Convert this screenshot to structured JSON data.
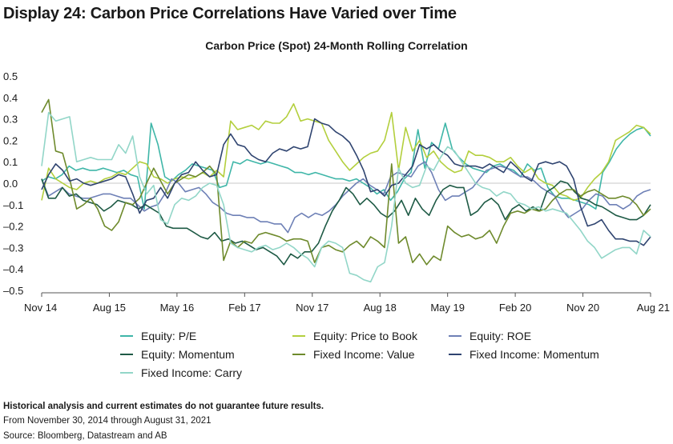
{
  "page_title": "Display 24: Carbon Price Correlations Have Varied over Time",
  "footnotes": {
    "disclaimer": "Historical analysis and current estimates do not guarantee future results.",
    "period": "From November 30, 2014 through August 31, 2021",
    "source": "Source: Bloomberg, Datastream and AB"
  },
  "chart_data": {
    "type": "line",
    "title": "Carbon Price (Spot) 24-Month Rolling Correlation",
    "xlabel": "",
    "ylabel": "",
    "ylim": [
      -0.5,
      0.5
    ],
    "yticks": [
      "0.5",
      "0.4",
      "0.3",
      "0.2",
      "0.1",
      "0.0",
      "–0.1",
      "–0.2",
      "–0.3",
      "–0.4",
      "–0.5"
    ],
    "xticks": [
      "Nov 14",
      "Aug 15",
      "May 16",
      "Feb 17",
      "Nov 17",
      "Aug 18",
      "May 19",
      "Feb 20",
      "Nov 20",
      "Aug 21"
    ],
    "grid": false,
    "legend_position": "bottom",
    "series": [
      {
        "name": "Equity: P/E",
        "color": "#3fb6a8",
        "values": [
          0.01,
          0.03,
          0.02,
          0.04,
          0.08,
          0.06,
          0.07,
          0.06,
          0.06,
          0.07,
          0.06,
          0.05,
          0.06,
          0.04,
          0.03,
          -0.12,
          0.28,
          0.18,
          0.03,
          0.01,
          0.04,
          0.06,
          0.09,
          0.08,
          0.07,
          0.06,
          -0.02,
          -0.01,
          0.1,
          0.09,
          0.11,
          0.1,
          0.09,
          0.1,
          0.09,
          0.08,
          0.07,
          0.05,
          0.05,
          0.04,
          0.05,
          0.04,
          0.03,
          0.02,
          0.02,
          0.01,
          0.02,
          0.0,
          -0.02,
          -0.05,
          -0.03,
          -0.08,
          -0.04,
          0.02,
          0.05,
          0.25,
          0.07,
          0.19,
          0.16,
          0.28,
          0.16,
          0.12,
          0.09,
          0.07,
          0.06,
          0.05,
          0.08,
          0.09,
          0.07,
          0.06,
          0.03,
          0.09,
          0.06,
          0.07,
          -0.02,
          -0.06,
          -0.07,
          -0.07,
          -0.08,
          -0.09,
          -0.1,
          -0.12,
          0.05,
          0.1,
          0.16,
          0.2,
          0.23,
          0.25,
          0.26,
          0.22
        ]
      },
      {
        "name": "Equity: Price to Book",
        "color": "#b3cf3d",
        "values": [
          -0.08,
          0.07,
          0.02,
          0.0,
          -0.02,
          -0.03,
          0.0,
          0.01,
          0.0,
          0.02,
          0.03,
          0.05,
          0.04,
          0.07,
          0.1,
          0.09,
          0.03,
          0.02,
          0.0,
          0.02,
          0.03,
          0.02,
          0.03,
          0.05,
          0.03,
          0.06,
          0.03,
          0.29,
          0.25,
          0.26,
          0.27,
          0.25,
          0.29,
          0.28,
          0.28,
          0.31,
          0.37,
          0.29,
          0.3,
          0.29,
          0.28,
          0.2,
          0.15,
          0.1,
          0.06,
          0.09,
          0.12,
          0.14,
          0.15,
          0.2,
          0.33,
          0.06,
          0.26,
          0.15,
          0.2,
          0.12,
          0.15,
          0.1,
          0.07,
          0.05,
          0.06,
          0.15,
          0.13,
          0.13,
          0.12,
          0.1,
          0.1,
          0.12,
          0.08,
          0.05,
          0.07,
          0.02,
          0.0,
          -0.01,
          -0.05,
          -0.06,
          -0.08,
          -0.07,
          -0.02,
          0.02,
          0.05,
          0.1,
          0.2,
          0.22,
          0.24,
          0.27,
          0.26,
          0.23
        ]
      },
      {
        "name": "Equity: ROE",
        "color": "#6e80b6",
        "values": [
          0.02,
          -0.06,
          -0.04,
          -0.02,
          -0.05,
          -0.06,
          -0.07,
          -0.07,
          -0.06,
          -0.05,
          -0.05,
          -0.06,
          -0.07,
          -0.07,
          -0.1,
          -0.13,
          -0.11,
          -0.1,
          -0.05,
          0.02,
          0.0,
          -0.04,
          -0.03,
          -0.02,
          -0.05,
          -0.09,
          -0.11,
          -0.14,
          -0.15,
          -0.15,
          -0.16,
          -0.16,
          -0.18,
          -0.18,
          -0.19,
          -0.19,
          -0.23,
          -0.16,
          -0.14,
          -0.16,
          -0.14,
          -0.15,
          -0.13,
          -0.1,
          -0.06,
          -0.03,
          0.0,
          0.02,
          -0.01,
          -0.03,
          -0.05,
          0.03,
          0.05,
          0.04,
          0.03,
          0.08,
          0.1,
          0.05,
          -0.03,
          -0.08,
          -0.06,
          -0.06,
          -0.04,
          -0.02,
          0.02,
          0.06,
          0.07,
          0.08,
          0.07,
          0.05,
          0.03,
          0.03,
          0.01,
          -0.02,
          -0.04,
          -0.06,
          -0.12,
          -0.16,
          -0.14,
          -0.12,
          -0.08,
          -0.05,
          -0.06,
          -0.1,
          -0.1,
          -0.12,
          -0.1,
          -0.06,
          -0.04,
          -0.03
        ]
      },
      {
        "name": "Equity: Momentum",
        "color": "#1e5a45",
        "values": [
          0.02,
          -0.07,
          -0.07,
          -0.02,
          -0.06,
          -0.05,
          -0.08,
          -0.09,
          -0.1,
          -0.13,
          -0.11,
          -0.08,
          -0.09,
          -0.1,
          -0.12,
          -0.1,
          -0.12,
          -0.14,
          -0.2,
          -0.21,
          -0.21,
          -0.21,
          -0.23,
          -0.25,
          -0.26,
          -0.23,
          -0.27,
          -0.26,
          -0.28,
          -0.27,
          -0.29,
          -0.31,
          -0.3,
          -0.32,
          -0.34,
          -0.38,
          -0.33,
          -0.35,
          -0.32,
          -0.32,
          -0.28,
          -0.2,
          -0.13,
          -0.08,
          -0.02,
          -0.05,
          -0.1,
          -0.07,
          -0.1,
          -0.14,
          -0.16,
          -0.13,
          -0.08,
          -0.15,
          -0.07,
          -0.12,
          -0.15,
          -0.08,
          -0.03,
          -0.01,
          -0.02,
          -0.02,
          -0.15,
          -0.13,
          -0.09,
          -0.07,
          -0.1,
          -0.17,
          -0.12,
          -0.1,
          -0.13,
          -0.11,
          -0.13,
          -0.04,
          -0.02,
          0.01,
          0.0,
          -0.04,
          -0.07,
          -0.08,
          -0.1,
          -0.11,
          -0.13,
          -0.15,
          -0.16,
          -0.17,
          -0.17,
          -0.15,
          -0.1
        ]
      },
      {
        "name": "Fixed Income: Value",
        "color": "#6e8a2c",
        "values": [
          0.33,
          0.39,
          0.15,
          0.14,
          0.02,
          -0.12,
          -0.1,
          -0.07,
          -0.12,
          -0.2,
          -0.22,
          -0.18,
          -0.09,
          -0.1,
          -0.07,
          0.0,
          0.07,
          0.01,
          -0.05,
          0.0,
          0.02,
          0.04,
          0.03,
          0.05,
          0.08,
          0.04,
          -0.36,
          -0.27,
          -0.3,
          -0.27,
          -0.28,
          -0.24,
          -0.23,
          -0.24,
          -0.25,
          -0.27,
          -0.26,
          -0.26,
          -0.27,
          -0.37,
          -0.3,
          -0.29,
          -0.31,
          -0.32,
          -0.29,
          -0.27,
          -0.3,
          -0.25,
          -0.27,
          -0.3,
          0.09,
          -0.28,
          -0.25,
          -0.37,
          -0.33,
          -0.38,
          -0.34,
          -0.36,
          -0.2,
          -0.23,
          -0.25,
          -0.24,
          -0.26,
          -0.25,
          -0.22,
          -0.28,
          -0.2,
          -0.14,
          -0.13,
          -0.14,
          -0.12,
          -0.13,
          -0.12,
          -0.08,
          -0.05,
          -0.03,
          -0.03,
          -0.06,
          -0.04,
          -0.03,
          -0.05,
          -0.07,
          -0.07,
          -0.06,
          -0.07,
          -0.1,
          -0.15,
          -0.12
        ]
      },
      {
        "name": "Fixed Income: Momentum",
        "color": "#2f4470",
        "values": [
          -0.03,
          0.04,
          0.09,
          0.06,
          0.01,
          0.02,
          0.0,
          -0.01,
          0.0,
          0.01,
          0.02,
          0.04,
          0.03,
          -0.05,
          -0.14,
          -0.08,
          -0.07,
          -0.02,
          -0.07,
          0.0,
          0.04,
          0.05,
          0.1,
          0.06,
          0.03,
          0.04,
          0.18,
          0.23,
          0.18,
          0.17,
          0.13,
          0.11,
          0.1,
          0.14,
          0.16,
          0.15,
          0.17,
          0.16,
          0.17,
          0.3,
          0.28,
          0.27,
          0.24,
          0.22,
          0.19,
          0.13,
          0.06,
          -0.04,
          -0.03,
          -0.06,
          -0.01,
          0.0,
          0.04,
          0.08,
          0.18,
          0.16,
          0.18,
          0.15,
          0.13,
          0.09,
          0.08,
          0.08,
          0.08,
          0.07,
          0.09,
          0.07,
          0.05,
          0.1,
          0.07,
          0.03,
          0.01,
          0.09,
          0.1,
          0.09,
          0.1,
          0.08,
          0.02,
          -0.11,
          -0.2,
          -0.19,
          -0.17,
          -0.22,
          -0.26,
          -0.26,
          -0.27,
          -0.27,
          -0.29,
          -0.25
        ]
      },
      {
        "name": "Fixed Income: Carry",
        "color": "#92d6c8",
        "values": [
          0.08,
          0.33,
          0.29,
          0.3,
          0.31,
          0.1,
          0.11,
          0.12,
          0.11,
          0.11,
          0.11,
          0.18,
          0.14,
          0.22,
          0.03,
          -0.05,
          -0.01,
          -0.17,
          -0.19,
          -0.1,
          -0.07,
          -0.08,
          -0.06,
          -0.02,
          0.0,
          -0.01,
          -0.1,
          -0.28,
          -0.3,
          -0.31,
          -0.32,
          -0.3,
          -0.29,
          -0.31,
          -0.3,
          -0.28,
          -0.3,
          -0.33,
          -0.35,
          -0.39,
          -0.3,
          -0.27,
          -0.28,
          -0.3,
          -0.42,
          -0.43,
          -0.45,
          -0.46,
          -0.39,
          -0.37,
          -0.2,
          0.07,
          0.0,
          -0.02,
          -0.01,
          0.08,
          0.06,
          0.12,
          0.17,
          0.15,
          0.1,
          0.05,
          0.0,
          -0.02,
          -0.03,
          -0.06,
          -0.04,
          -0.05,
          -0.09,
          -0.1,
          -0.12,
          -0.11,
          -0.13,
          -0.12,
          -0.13,
          -0.14,
          -0.18,
          -0.22,
          -0.27,
          -0.3,
          -0.35,
          -0.33,
          -0.31,
          -0.3,
          -0.3,
          -0.33,
          -0.22,
          -0.25
        ]
      }
    ]
  }
}
